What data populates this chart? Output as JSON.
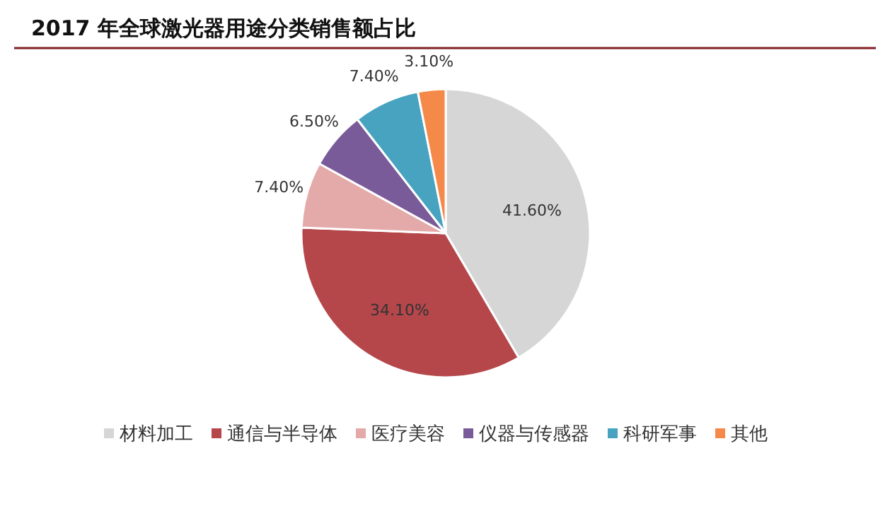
{
  "chart_data": {
    "type": "pie",
    "title": "2017 年全球激光器用途分类销售额占比",
    "categories": [
      "材料加工",
      "通信与半导体",
      "医疗美容",
      "仪器与传感器",
      "科研军事",
      "其他"
    ],
    "values": [
      41.6,
      34.1,
      7.4,
      6.5,
      7.4,
      3.1
    ],
    "value_labels": [
      "41.60%",
      "34.10%",
      "7.40%",
      "6.50%",
      "7.40%",
      "3.10%"
    ],
    "colors": [
      "#d6d6d6",
      "#b5474b",
      "#e3aaa9",
      "#7a5b99",
      "#47a3bf",
      "#f4894a"
    ],
    "legend": "bottom"
  }
}
